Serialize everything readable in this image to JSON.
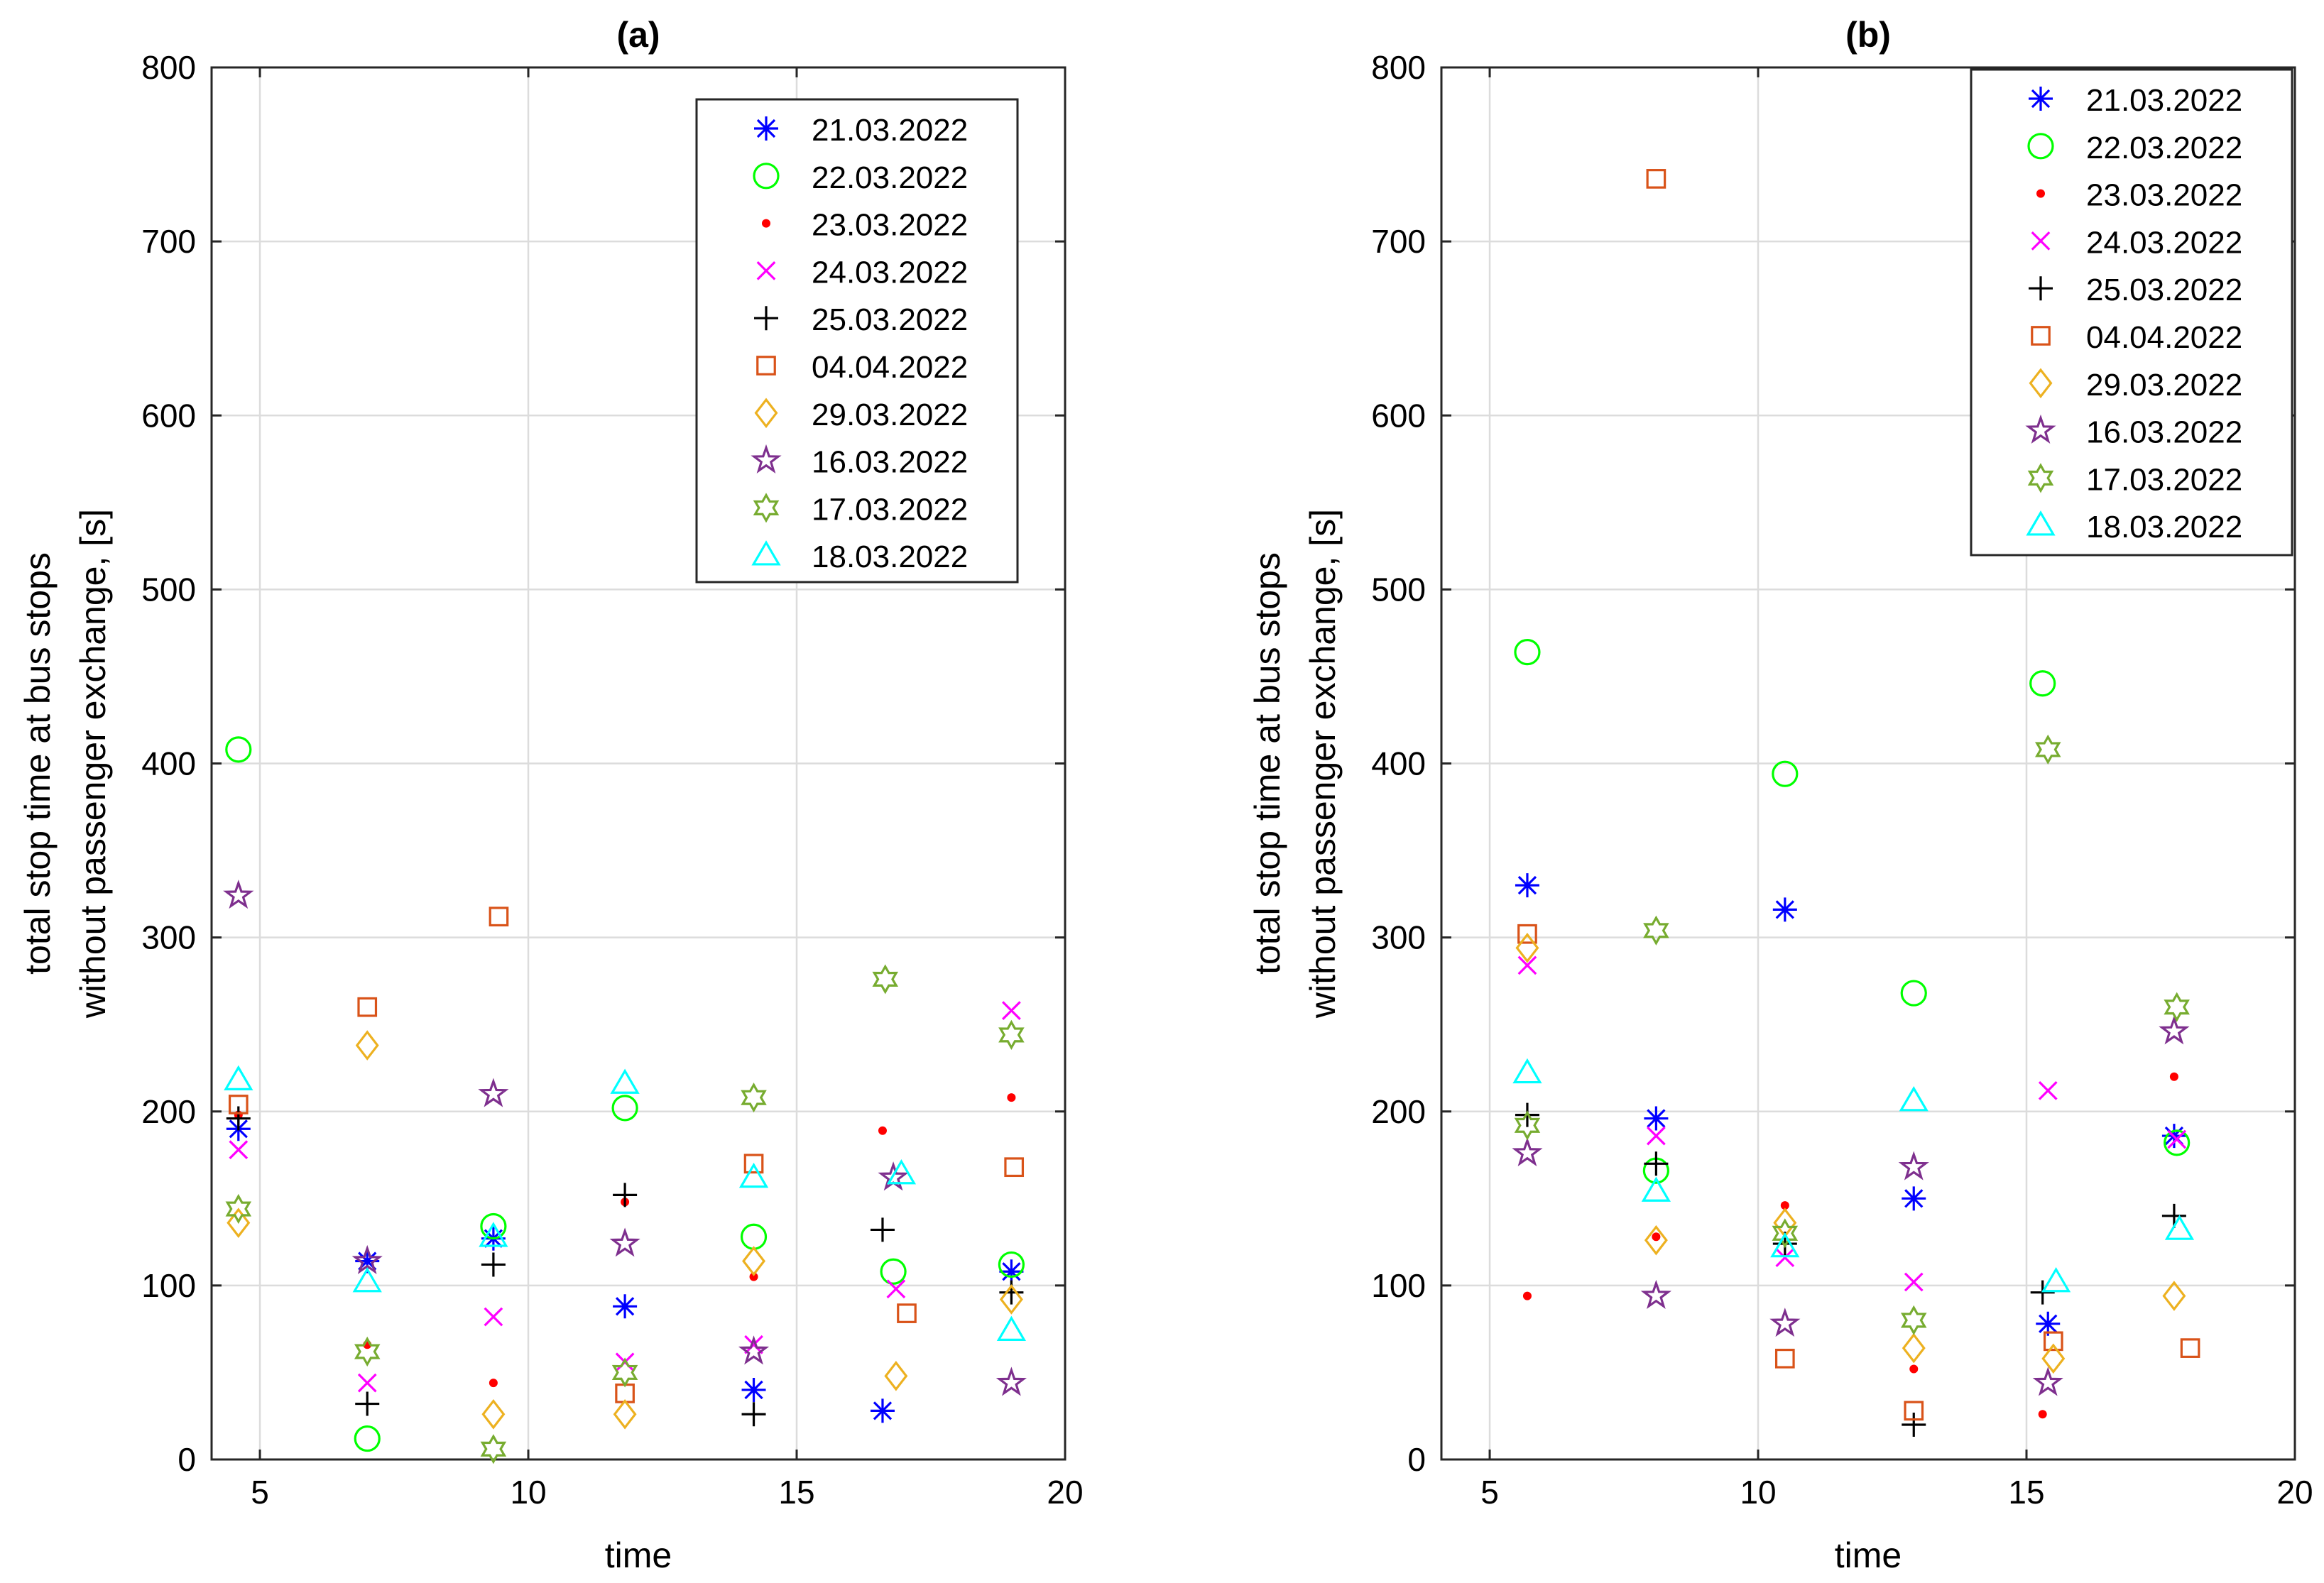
{
  "colors": {
    "21.03.2022": "#0000ff",
    "22.03.2022": "#00ff00",
    "23.03.2022": "#ff0000",
    "24.03.2022": "#ff00ff",
    "25.03.2022": "#000000",
    "04.04.2022": "#d95319",
    "29.03.2022": "#edb120",
    "16.03.2022": "#7e2f8e",
    "17.03.2022": "#77ac30",
    "18.03.2022": "#00ffff"
  },
  "chart_data": [
    {
      "type": "scatter",
      "title": "(a)",
      "xlabel": "time",
      "ylabel_lines": [
        "total stop time at bus stops",
        "without passenger exchange, [s]"
      ],
      "xlim": [
        4.1,
        20
      ],
      "ylim": [
        0,
        800
      ],
      "xticks": [
        5,
        10,
        15,
        20
      ],
      "yticks": [
        0,
        100,
        200,
        300,
        400,
        500,
        600,
        700,
        800
      ],
      "grid": true,
      "legend_position": "top-right",
      "series": [
        {
          "name": "21.03.2022",
          "marker": "asterisk",
          "x": [
            4.6,
            7.0,
            9.35,
            11.8,
            14.2,
            16.6,
            19.0
          ],
          "y": [
            190,
            114,
            127,
            88,
            40,
            28,
            108
          ]
        },
        {
          "name": "22.03.2022",
          "marker": "circle",
          "x": [
            4.6,
            7.0,
            9.35,
            11.8,
            14.2,
            16.8,
            19.0
          ],
          "y": [
            408,
            12,
            134,
            202,
            128,
            108,
            112
          ]
        },
        {
          "name": "23.03.2022",
          "marker": "dot",
          "x": [
            4.6,
            7.0,
            9.35,
            11.8,
            14.2,
            16.6,
            19.0
          ],
          "y": [
            198,
            66,
            44,
            148,
            105,
            189,
            208
          ]
        },
        {
          "name": "24.03.2022",
          "marker": "x",
          "x": [
            4.6,
            7.0,
            9.35,
            11.8,
            14.2,
            16.85,
            19.0
          ],
          "y": [
            178,
            44,
            82,
            56,
            66,
            98,
            258
          ]
        },
        {
          "name": "25.03.2022",
          "marker": "plus",
          "x": [
            4.6,
            7.0,
            9.35,
            11.8,
            14.2,
            16.6,
            19.0
          ],
          "y": [
            196,
            32,
            112,
            152,
            26,
            132,
            96
          ]
        },
        {
          "name": "04.04.2022",
          "marker": "square",
          "x": [
            4.6,
            7.0,
            9.45,
            11.8,
            14.2,
            17.05,
            19.05
          ],
          "y": [
            204,
            260,
            312,
            38,
            170,
            84,
            168
          ]
        },
        {
          "name": "29.03.2022",
          "marker": "diamond",
          "x": [
            4.6,
            7.0,
            9.35,
            11.8,
            14.2,
            16.85,
            19.0
          ],
          "y": [
            136,
            238,
            26,
            26,
            114,
            48,
            92
          ]
        },
        {
          "name": "16.03.2022",
          "marker": "pentagram",
          "x": [
            4.6,
            7.0,
            9.35,
            11.8,
            14.2,
            16.8,
            19.0
          ],
          "y": [
            324,
            114,
            210,
            124,
            62,
            162,
            44
          ]
        },
        {
          "name": "17.03.2022",
          "marker": "hexagram",
          "x": [
            4.6,
            7.0,
            9.35,
            11.8,
            14.2,
            16.65,
            19.0
          ],
          "y": [
            144,
            62,
            6,
            50,
            208,
            276,
            244
          ]
        },
        {
          "name": "18.03.2022",
          "marker": "triangle",
          "x": [
            4.6,
            7.0,
            9.35,
            11.8,
            14.2,
            16.95,
            19.0
          ],
          "y": [
            218,
            102,
            128,
            216,
            162,
            164,
            74
          ]
        }
      ]
    },
    {
      "type": "scatter",
      "title": "(b)",
      "xlabel": "time",
      "ylabel_lines": [
        "total stop time at bus stops",
        "without passenger exchange, [s]"
      ],
      "xlim": [
        4.1,
        20
      ],
      "ylim": [
        0,
        800
      ],
      "xticks": [
        5,
        10,
        15,
        20
      ],
      "yticks": [
        0,
        100,
        200,
        300,
        400,
        500,
        600,
        700,
        800
      ],
      "grid": true,
      "legend_position": "top-right",
      "series": [
        {
          "name": "21.03.2022",
          "marker": "asterisk",
          "x": [
            5.7,
            8.1,
            10.5,
            12.9,
            15.4,
            17.75
          ],
          "y": [
            330,
            196,
            316,
            150,
            78,
            186
          ]
        },
        {
          "name": "22.03.2022",
          "marker": "circle",
          "x": [
            5.7,
            8.1,
            10.5,
            12.9,
            15.3,
            17.8
          ],
          "y": [
            464,
            166,
            394,
            268,
            446,
            182
          ]
        },
        {
          "name": "23.03.2022",
          "marker": "dot",
          "x": [
            5.7,
            8.1,
            10.5,
            12.9,
            15.3,
            17.75
          ],
          "y": [
            94,
            128,
            146,
            52,
            26,
            220
          ]
        },
        {
          "name": "24.03.2022",
          "marker": "x",
          "x": [
            5.7,
            8.1,
            10.5,
            12.9,
            15.4,
            17.8
          ],
          "y": [
            284,
            186,
            116,
            102,
            212,
            184
          ]
        },
        {
          "name": "25.03.2022",
          "marker": "plus",
          "x": [
            5.7,
            8.1,
            10.5,
            12.9,
            15.3,
            17.75
          ],
          "y": [
            198,
            170,
            124,
            20,
            96,
            140
          ]
        },
        {
          "name": "04.04.2022",
          "marker": "square",
          "x": [
            5.7,
            8.1,
            10.5,
            12.9,
            15.5,
            18.05
          ],
          "y": [
            302,
            736,
            58,
            28,
            68,
            64
          ]
        },
        {
          "name": "29.03.2022",
          "marker": "diamond",
          "x": [
            5.7,
            8.1,
            10.5,
            12.9,
            15.5,
            17.75
          ],
          "y": [
            294,
            126,
            136,
            64,
            58,
            94
          ]
        },
        {
          "name": "16.03.2022",
          "marker": "pentagram",
          "x": [
            5.7,
            8.1,
            10.5,
            12.9,
            15.4,
            17.75
          ],
          "y": [
            176,
            94,
            78,
            168,
            44,
            246
          ]
        },
        {
          "name": "17.03.2022",
          "marker": "hexagram",
          "x": [
            5.7,
            8.1,
            10.5,
            12.9,
            15.4,
            17.8
          ],
          "y": [
            192,
            304,
            130,
            80,
            408,
            260
          ]
        },
        {
          "name": "18.03.2022",
          "marker": "triangle",
          "x": [
            5.7,
            8.1,
            10.5,
            12.9,
            15.55,
            17.85
          ],
          "y": [
            222,
            154,
            122,
            206,
            102,
            132
          ]
        }
      ]
    }
  ]
}
